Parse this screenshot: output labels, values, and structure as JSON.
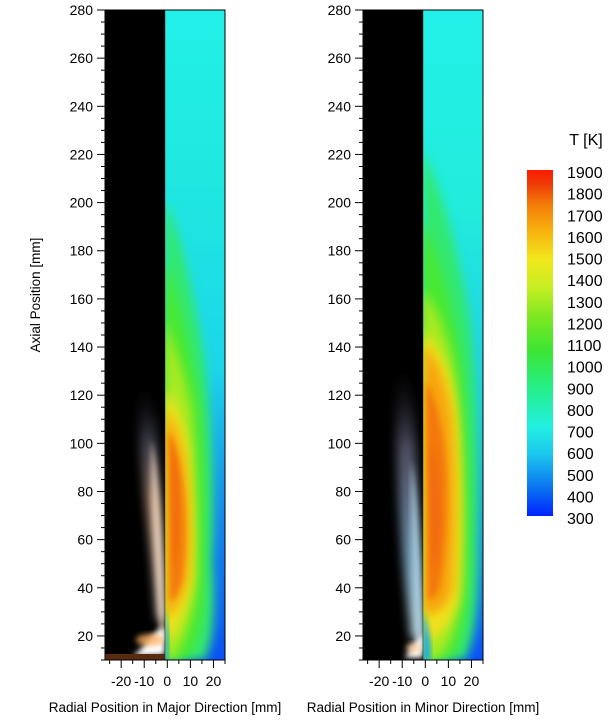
{
  "chart_data": [
    {
      "type": "heatmap",
      "panel": "major",
      "xlabel": "Radial Position in Major Direction [mm]",
      "ylabel": "Axial Position [mm]",
      "xlim": [
        -27,
        25
      ],
      "ylim": [
        10,
        280
      ],
      "xticks": [
        -20,
        -10,
        0,
        10,
        20
      ],
      "yticks": [
        20,
        40,
        60,
        80,
        100,
        120,
        140,
        160,
        180,
        200,
        220,
        240,
        260,
        280
      ],
      "left_half": "flame photograph (luminous flame, bright near base up to ~120 mm)",
      "right_half": "temperature field",
      "hot_zone_1700K": {
        "axial_range": [
          55,
          115
        ],
        "radial_range": [
          2,
          14
        ]
      },
      "profile": [
        {
          "y": 10,
          "width_hot": 4,
          "width_warm": 8
        },
        {
          "y": 20,
          "width_hot": 3,
          "width_warm": 10
        },
        {
          "y": 40,
          "width_hot": 5,
          "width_warm": 12
        },
        {
          "y": 60,
          "width_hot": 10,
          "width_warm": 16
        },
        {
          "y": 80,
          "width_hot": 12,
          "width_warm": 17
        },
        {
          "y": 100,
          "width_hot": 11,
          "width_warm": 16
        },
        {
          "y": 120,
          "width_hot": 4,
          "width_warm": 14
        },
        {
          "y": 160,
          "width_hot": 0,
          "width_warm": 12
        },
        {
          "y": 200,
          "width_hot": 0,
          "width_warm": 8
        },
        {
          "y": 240,
          "width_hot": 0,
          "width_warm": 4
        },
        {
          "y": 280,
          "width_hot": 0,
          "width_warm": 0
        }
      ]
    },
    {
      "type": "heatmap",
      "panel": "minor",
      "xlabel": "Radial Position in Minor Direction [mm]",
      "ylabel": "",
      "xlim": [
        -27,
        25
      ],
      "ylim": [
        10,
        280
      ],
      "xticks": [
        -20,
        -10,
        0,
        10,
        20
      ],
      "yticks": [
        20,
        40,
        60,
        80,
        100,
        120,
        140,
        160,
        180,
        200,
        220,
        240,
        260,
        280
      ],
      "left_half": "flame photograph (bluish flame, most luminous near base)",
      "right_half": "temperature field",
      "hot_zone_1700K": {
        "axial_range": [
          40,
          135
        ],
        "radial_range": [
          0,
          15
        ]
      },
      "profile": [
        {
          "y": 10,
          "width_hot": 5,
          "width_warm": 9
        },
        {
          "y": 20,
          "width_hot": 4,
          "width_warm": 10
        },
        {
          "y": 40,
          "width_hot": 9,
          "width_warm": 14
        },
        {
          "y": 60,
          "width_hot": 12,
          "width_warm": 17
        },
        {
          "y": 80,
          "width_hot": 14,
          "width_warm": 18
        },
        {
          "y": 100,
          "width_hot": 14,
          "width_warm": 18
        },
        {
          "y": 120,
          "width_hot": 13,
          "width_warm": 17
        },
        {
          "y": 140,
          "width_hot": 5,
          "width_warm": 16
        },
        {
          "y": 160,
          "width_hot": 0,
          "width_warm": 15
        },
        {
          "y": 200,
          "width_hot": 0,
          "width_warm": 11
        },
        {
          "y": 240,
          "width_hot": 0,
          "width_warm": 6
        },
        {
          "y": 280,
          "width_hot": 0,
          "width_warm": 2
        }
      ]
    }
  ],
  "colorbar": {
    "title": "T [K]",
    "min": 300,
    "max": 1900,
    "labels": [
      "1900",
      "1800",
      "1700",
      "1600",
      "1500",
      "1400",
      "1300",
      "1200",
      "1100",
      "1000",
      "900",
      "800",
      "700",
      "600",
      "500",
      "400",
      "300"
    ],
    "colors": [
      "#0022ff",
      "#0a72f0",
      "#1cc8ee",
      "#22f0e0",
      "#26ee80",
      "#3ee632",
      "#80e822",
      "#c6ee22",
      "#f0e81c",
      "#f8b40e",
      "#f47c08",
      "#ee3a06",
      "#ff1a00"
    ]
  }
}
